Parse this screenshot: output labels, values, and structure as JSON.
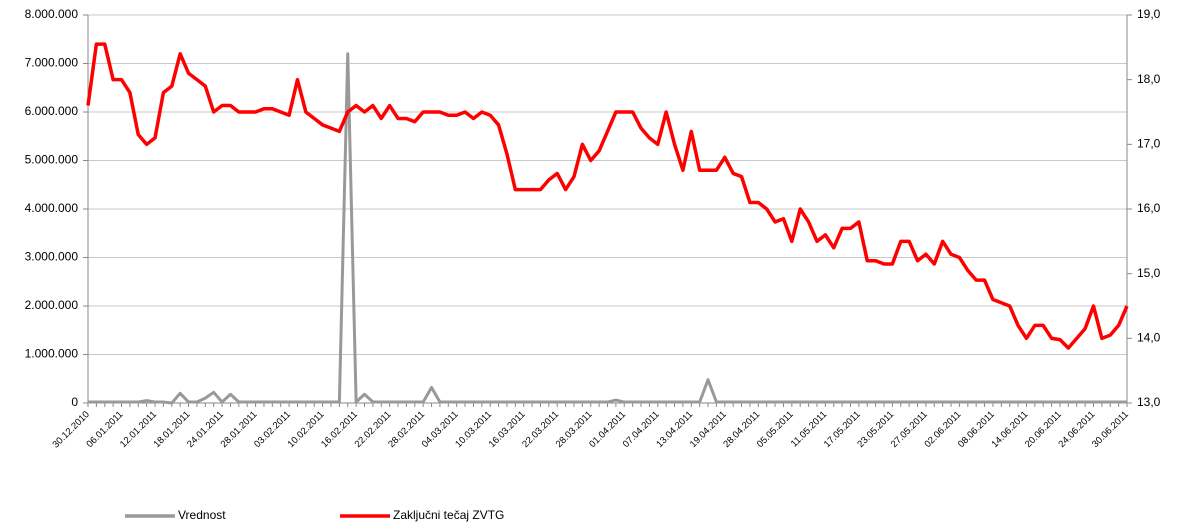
{
  "chart_data": {
    "type": "line",
    "categories": [
      "30.12.2010",
      null,
      null,
      null,
      "06.01.2011",
      null,
      null,
      null,
      "12.01.2011",
      null,
      null,
      null,
      "18.01.2011",
      null,
      null,
      null,
      "24.01.2011",
      null,
      null,
      null,
      "28.01.2011",
      null,
      null,
      null,
      "03.02.2011",
      null,
      null,
      null,
      "10.02.2011",
      null,
      null,
      null,
      "16.02.2011",
      null,
      null,
      null,
      "22.02.2011",
      null,
      null,
      null,
      "28.02.2011",
      null,
      null,
      null,
      "04.03.2011",
      null,
      null,
      null,
      "10.03.2011",
      null,
      null,
      null,
      "16.03.2011",
      null,
      null,
      null,
      "22.03.2011",
      null,
      null,
      null,
      "28.03.2011",
      null,
      null,
      null,
      "01.04.2011",
      null,
      null,
      null,
      "07.04.2011",
      null,
      null,
      null,
      "13.04.2011",
      null,
      null,
      null,
      "19.04.2011",
      null,
      null,
      null,
      "28.04.2011",
      null,
      null,
      null,
      "05.05.2011",
      null,
      null,
      null,
      "11.05.2011",
      null,
      null,
      null,
      "17.05.2011",
      null,
      null,
      null,
      "23.05.2011",
      null,
      null,
      null,
      "27.05.2011",
      null,
      null,
      null,
      "02.06.2011",
      null,
      null,
      null,
      "08.06.2011",
      null,
      null,
      null,
      "14.06.2011",
      null,
      null,
      null,
      "20.06.2011",
      null,
      null,
      null,
      "24.06.2011",
      null,
      null,
      null,
      "30.06.2011"
    ],
    "series": [
      {
        "name": "Vrednost",
        "color": "#999999",
        "axis": "y",
        "values": [
          20000,
          20000,
          20000,
          20000,
          20000,
          20000,
          20000,
          50000,
          20000,
          20000,
          0,
          200000,
          20000,
          20000,
          100000,
          220000,
          20000,
          180000,
          20000,
          20000,
          20000,
          20000,
          20000,
          20000,
          20000,
          20000,
          20000,
          20000,
          20000,
          20000,
          20000,
          7200000,
          20000,
          180000,
          20000,
          20000,
          20000,
          20000,
          20000,
          20000,
          20000,
          320000,
          20000,
          20000,
          20000,
          20000,
          20000,
          20000,
          20000,
          20000,
          20000,
          20000,
          20000,
          20000,
          20000,
          20000,
          20000,
          20000,
          20000,
          20000,
          20000,
          20000,
          20000,
          60000,
          20000,
          20000,
          20000,
          20000,
          20000,
          20000,
          20000,
          20000,
          20000,
          20000,
          480000,
          20000,
          20000,
          20000,
          20000,
          20000,
          20000,
          20000,
          20000,
          20000,
          20000,
          20000,
          20000,
          20000,
          20000,
          20000,
          20000,
          20000,
          20000,
          20000,
          20000,
          20000,
          20000,
          20000,
          20000,
          20000,
          20000,
          20000,
          20000,
          20000,
          20000,
          20000,
          20000,
          20000,
          20000,
          20000,
          20000,
          20000,
          20000,
          20000,
          20000,
          20000,
          20000,
          20000,
          20000,
          20000,
          20000,
          20000,
          20000,
          20000,
          20000
        ]
      },
      {
        "name": "Zaključni tečaj ZVTG",
        "color": "#ff0000",
        "axis": "y2",
        "values": [
          17.6,
          18.55,
          18.55,
          18.0,
          18.0,
          17.8,
          17.15,
          17.0,
          17.1,
          17.8,
          17.9,
          18.4,
          18.1,
          18.0,
          17.9,
          17.5,
          17.6,
          17.6,
          17.5,
          17.5,
          17.5,
          17.55,
          17.55,
          17.5,
          17.45,
          18.0,
          17.5,
          17.4,
          17.3,
          17.25,
          17.2,
          17.5,
          17.6,
          17.5,
          17.6,
          17.4,
          17.6,
          17.4,
          17.4,
          17.35,
          17.5,
          17.5,
          17.5,
          17.45,
          17.45,
          17.5,
          17.4,
          17.5,
          17.45,
          17.3,
          16.85,
          16.3,
          16.3,
          16.3,
          16.3,
          16.45,
          16.55,
          16.3,
          16.5,
          17.0,
          16.75,
          16.9,
          17.2,
          17.5,
          17.5,
          17.5,
          17.25,
          17.1,
          17.0,
          17.5,
          17.0,
          16.6,
          17.2,
          16.6,
          16.6,
          16.6,
          16.8,
          16.55,
          16.5,
          16.1,
          16.1,
          16.0,
          15.8,
          15.85,
          15.5,
          16.0,
          15.8,
          15.5,
          15.6,
          15.4,
          15.7,
          15.7,
          15.8,
          15.2,
          15.2,
          15.15,
          15.15,
          15.5,
          15.5,
          15.2,
          15.3,
          15.15,
          15.5,
          15.3,
          15.25,
          15.05,
          14.9,
          14.9,
          14.6,
          14.55,
          14.5,
          14.2,
          14.0,
          14.2,
          14.2,
          14.0,
          13.98,
          13.85,
          14.0,
          14.15,
          14.5,
          14.0,
          14.05,
          14.2,
          14.5
        ]
      }
    ],
    "ylim": [
      0,
      8000000
    ],
    "yticks": [
      0,
      {
        "value": 1000000,
        "label": "1.000.000"
      },
      {
        "value": 2000000,
        "label": "2.000.000"
      },
      {
        "value": 3000000,
        "label": "3.000.000"
      },
      {
        "value": 4000000,
        "label": "4.000.000"
      },
      {
        "value": 5000000,
        "label": "5.000.000"
      },
      {
        "value": 6000000,
        "label": "6.000.000"
      },
      {
        "value": 7000000,
        "label": "7.000.000"
      },
      {
        "value": 8000000,
        "label": "8.000.000"
      }
    ],
    "y2lim": [
      13,
      19
    ],
    "y2ticks": [
      {
        "value": 13,
        "label": "13,0"
      },
      {
        "value": 14,
        "label": "14,0"
      },
      {
        "value": 15,
        "label": "15,0"
      },
      {
        "value": 16,
        "label": "16,0"
      },
      {
        "value": 17,
        "label": "17,0"
      },
      {
        "value": 18,
        "label": "18,0"
      },
      {
        "value": 19,
        "label": "19,0"
      }
    ],
    "grid": true,
    "legend": "bottom"
  }
}
